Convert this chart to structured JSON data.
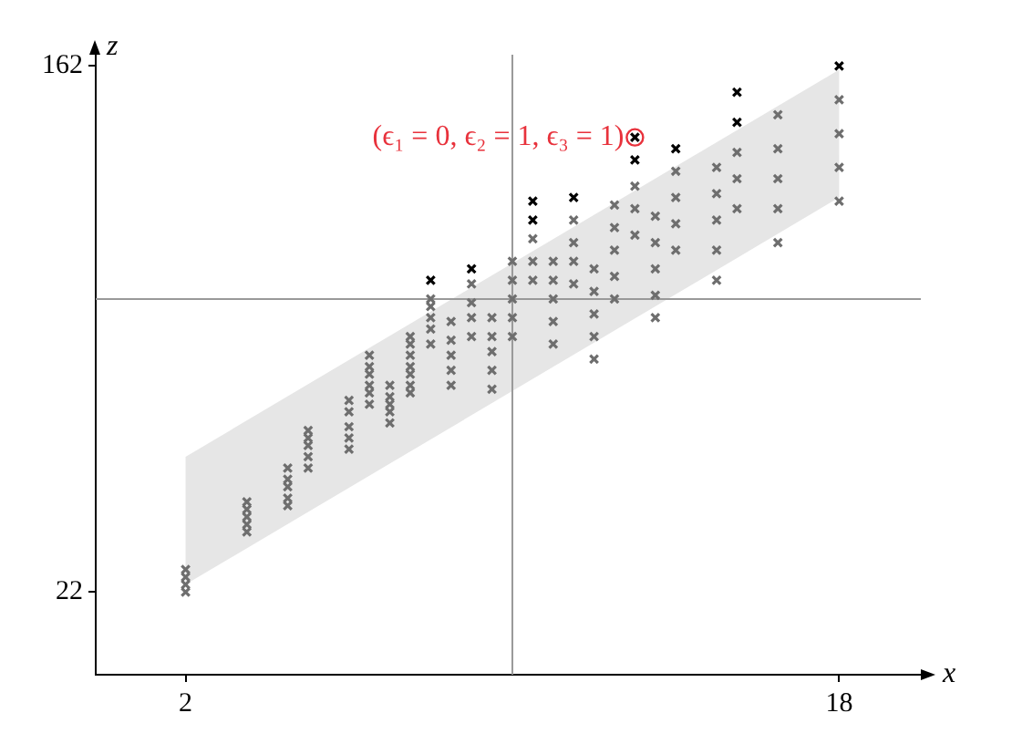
{
  "chart_data": {
    "type": "scatter",
    "xlabel": "x",
    "ylabel": "z",
    "xlim": [
      -0.2,
      20
    ],
    "ylim": [
      0,
      165
    ],
    "xticks": [
      2,
      18
    ],
    "yticks": [
      22,
      162
    ],
    "grid": false,
    "legend": false,
    "marker": "cross",
    "series": [
      {
        "type": "area",
        "color": "#e6e6e6",
        "x": [
          2,
          18
        ],
        "values": [
          null,
          null
        ],
        "lower": [
          24,
          127
        ],
        "upper": [
          58,
          161
        ]
      },
      {
        "color": "#6e6e6e",
        "x": [
          2,
          2,
          2,
          2,
          3.5,
          3.5,
          3.5,
          3.5,
          3.5,
          4.5,
          4.5,
          4.5,
          4.5,
          4.5,
          5,
          5,
          5,
          5,
          5,
          6,
          6,
          6,
          6,
          6,
          6.5,
          6.5,
          6.5,
          6.5,
          6.5,
          6.5,
          7,
          7,
          7,
          7,
          7,
          7.5,
          7.5,
          7.5,
          7.5,
          7.5,
          7.5,
          7.5,
          8,
          8,
          8,
          8,
          8,
          8.5,
          8.5,
          8.5,
          8.5,
          8.5,
          9,
          9,
          9,
          9,
          9.5,
          9.5,
          9.5,
          9.5,
          9.5,
          10,
          10,
          10,
          10,
          10,
          10.5,
          10.5,
          10.5,
          11,
          11,
          11,
          11,
          11,
          11.5,
          11.5,
          11.5,
          11.5,
          12,
          12,
          12,
          12,
          12,
          12.5,
          12.5,
          12.5,
          12.5,
          12.5,
          13,
          13,
          13,
          13.5,
          13.5,
          13.5,
          13.5,
          13.5,
          14,
          14,
          14,
          14,
          15,
          15,
          15,
          15,
          15,
          15.5,
          15.5,
          15.5,
          16.5,
          16.5,
          16.5,
          16.5,
          16.5,
          18,
          18,
          18,
          18
        ],
        "values": [
          22,
          24,
          26,
          28,
          38,
          40,
          42,
          44,
          46,
          45,
          47,
          50,
          52,
          55,
          55,
          58,
          61,
          63,
          65,
          60,
          63,
          66,
          70,
          73,
          72,
          75,
          77,
          80,
          82,
          85,
          67,
          70,
          72,
          74,
          77,
          75,
          77,
          80,
          82,
          85,
          88,
          90,
          88,
          92,
          95,
          98,
          100,
          77,
          81,
          85,
          89,
          94,
          90,
          95,
          99,
          104,
          76,
          81,
          86,
          90,
          95,
          90,
          95,
          100,
          105,
          110,
          105,
          110,
          116,
          88,
          94,
          100,
          105,
          110,
          104,
          110,
          115,
          121,
          84,
          90,
          96,
          102,
          108,
          100,
          106,
          113,
          119,
          125,
          117,
          124,
          130,
          95,
          101,
          108,
          115,
          122,
          113,
          120,
          127,
          134,
          105,
          113,
          121,
          128,
          135,
          124,
          132,
          139,
          115,
          124,
          132,
          140,
          149,
          126,
          135,
          144,
          153
        ]
      },
      {
        "color": "#000000",
        "x": [
          8,
          9,
          10.5,
          10.5,
          11.5,
          13,
          13,
          14,
          15.5,
          15.5,
          18
        ],
        "values": [
          105,
          108,
          121,
          126,
          127,
          137,
          143,
          140,
          147,
          155,
          162
        ]
      }
    ],
    "ref_lines": [
      {
        "axis": "x",
        "value": 10,
        "color": "#999999"
      },
      {
        "axis": "y",
        "value": 100,
        "color": "#999999"
      }
    ],
    "annotations": [
      {
        "text": "(ϵ₁ = 0, ϵ₂ = 1, ϵ₃ = 1)",
        "x": 13,
        "y": 143
      }
    ]
  }
}
